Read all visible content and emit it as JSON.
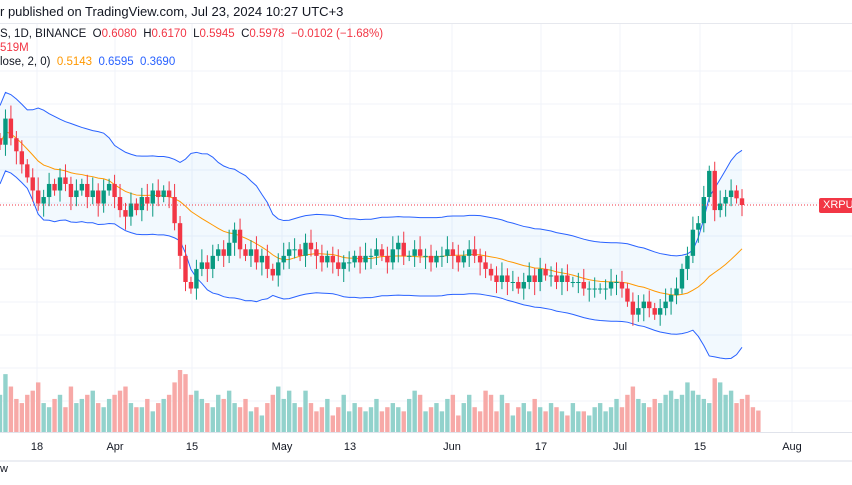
{
  "header": {
    "published": "r published on TradingView.com, Jul 23, 2024 10:27 UTC+3"
  },
  "legend": {
    "symbol": "S, 1D, BINANCE",
    "o_label": "O",
    "o": "0.6080",
    "h_label": "H",
    "h": "0.6170",
    "l_label": "L",
    "l": "0.5945",
    "c_label": "C",
    "c": "0.5978",
    "change": "−0.0102 (−1.68%)",
    "volume": "519M",
    "bb_label": "lose, 2, 0)",
    "bb_basis": "0.5143",
    "bb_upper": "0.6595",
    "bb_lower": "0.3690"
  },
  "price_label": "XRPUSDT",
  "footer": "w",
  "colors": {
    "up": "#089981",
    "down": "#f23645",
    "basis": "#ff9800",
    "band": "#2962ff",
    "vol_up": "#92d2cc",
    "vol_down": "#f7a9a7"
  },
  "chart_data": {
    "type": "candlestick",
    "interval": "1D",
    "time_labels": [
      "18",
      "Apr",
      "15",
      "May",
      "13",
      "Jun",
      "17",
      "Jul",
      "15",
      "Aug"
    ],
    "closes": [
      0.69,
      0.73,
      0.7,
      0.68,
      0.66,
      0.64,
      0.62,
      0.6,
      0.61,
      0.63,
      0.62,
      0.64,
      0.63,
      0.61,
      0.62,
      0.63,
      0.61,
      0.62,
      0.6,
      0.62,
      0.63,
      0.61,
      0.59,
      0.58,
      0.6,
      0.59,
      0.61,
      0.6,
      0.62,
      0.61,
      0.62,
      0.61,
      0.57,
      0.52,
      0.48,
      0.47,
      0.5,
      0.51,
      0.5,
      0.52,
      0.53,
      0.52,
      0.54,
      0.56,
      0.53,
      0.52,
      0.53,
      0.51,
      0.52,
      0.5,
      0.49,
      0.51,
      0.52,
      0.53,
      0.53,
      0.52,
      0.54,
      0.53,
      0.52,
      0.51,
      0.52,
      0.51,
      0.5,
      0.51,
      0.51,
      0.52,
      0.51,
      0.52,
      0.52,
      0.53,
      0.52,
      0.51,
      0.53,
      0.54,
      0.52,
      0.52,
      0.53,
      0.52,
      0.52,
      0.51,
      0.52,
      0.52,
      0.53,
      0.52,
      0.51,
      0.52,
      0.53,
      0.52,
      0.51,
      0.5,
      0.49,
      0.48,
      0.49,
      0.48,
      0.48,
      0.47,
      0.48,
      0.49,
      0.48,
      0.5,
      0.49,
      0.49,
      0.48,
      0.49,
      0.48,
      0.48,
      0.48,
      0.47,
      0.47,
      0.47,
      0.47,
      0.47,
      0.48,
      0.48,
      0.47,
      0.45,
      0.43,
      0.44,
      0.45,
      0.44,
      0.43,
      0.44,
      0.45,
      0.46,
      0.47,
      0.5,
      0.52,
      0.56,
      0.57,
      0.61,
      0.65,
      0.59,
      0.6,
      0.61,
      0.62,
      0.608,
      0.5978
    ],
    "volumes_m": [
      900,
      1400,
      1100,
      800,
      700,
      900,
      1000,
      1200,
      700,
      600,
      800,
      900,
      600,
      1100,
      700,
      800,
      900,
      1000,
      700,
      600,
      800,
      900,
      1000,
      1100,
      700,
      600,
      600,
      800,
      500,
      700,
      800,
      900,
      1200,
      1500,
      1400,
      900,
      1000,
      800,
      700,
      600,
      900,
      800,
      1000,
      700,
      600,
      800,
      500,
      600,
      400,
      700,
      900,
      1100,
      800,
      1000,
      700,
      600,
      1000,
      700,
      500,
      600,
      800,
      400,
      600,
      900,
      500,
      700,
      600,
      500,
      600,
      800,
      500,
      600,
      700,
      600,
      500,
      800,
      1000,
      900,
      500,
      600,
      700,
      500,
      800,
      900,
      400,
      700,
      900,
      600,
      500,
      1000,
      900,
      500,
      900,
      700,
      400,
      600,
      700,
      500,
      800,
      600,
      500,
      700,
      600,
      500,
      400,
      700,
      500,
      500,
      400,
      600,
      700,
      500,
      600,
      800,
      600,
      900,
      1100,
      800,
      700,
      600,
      800,
      700,
      900,
      1000,
      800,
      900,
      1200,
      1000,
      900,
      800,
      700,
      1300,
      1200,
      900,
      1000,
      700,
      800,
      900,
      600,
      519
    ]
  }
}
